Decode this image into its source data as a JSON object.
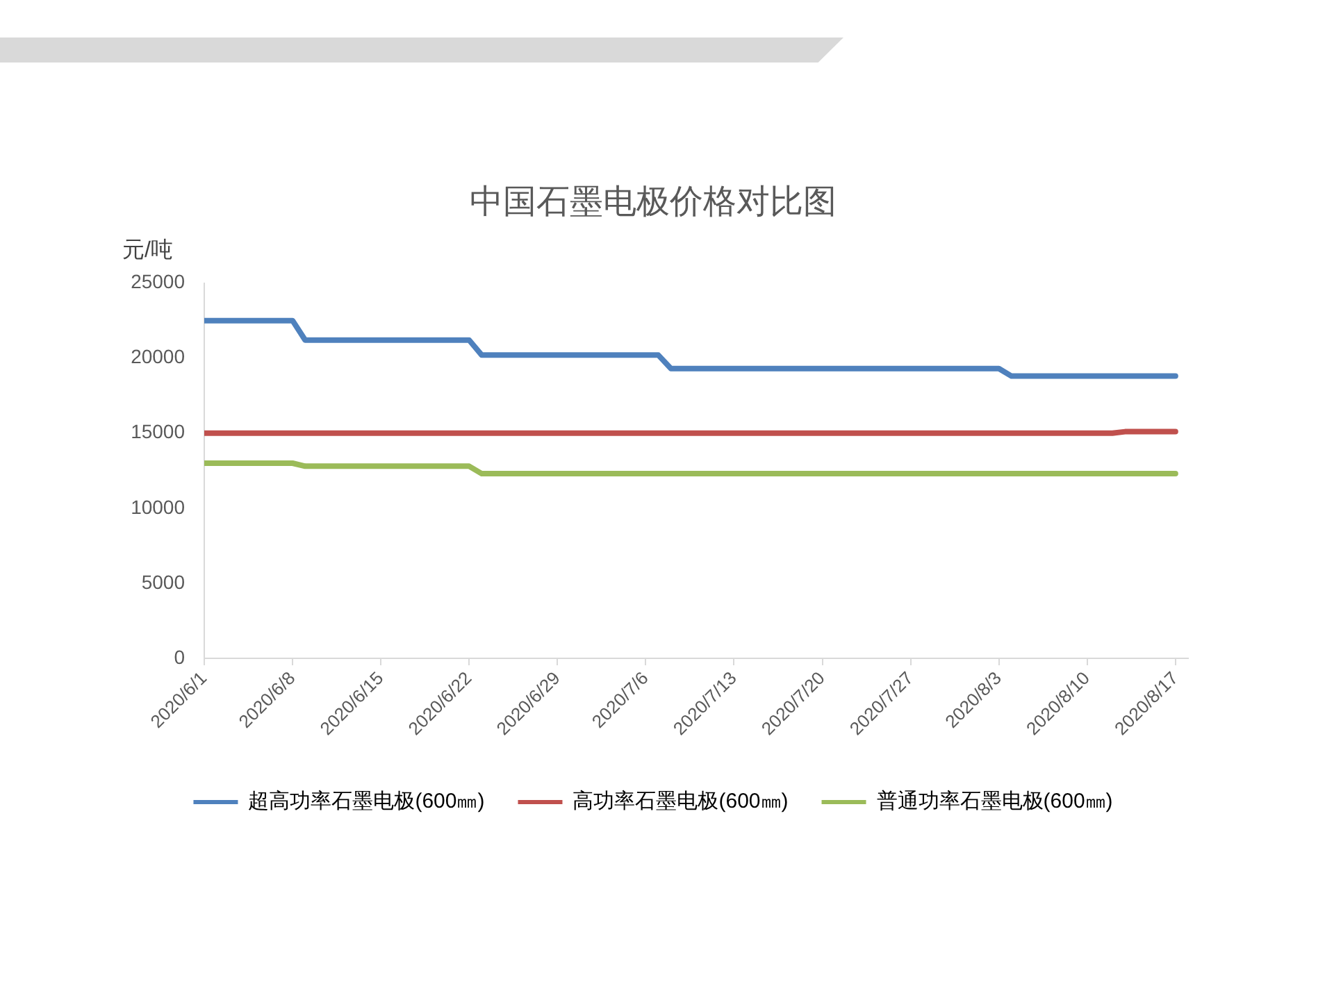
{
  "chart_data": {
    "type": "line",
    "title": "中国石墨电极价格对比图",
    "ylabel": "元/吨",
    "xlim": [
      "2020-06-01",
      "2020-08-18"
    ],
    "xticks": [
      {
        "value": "2020-06-01",
        "label": "2020/6/1"
      },
      {
        "value": "2020-06-08",
        "label": "2020/6/8"
      },
      {
        "value": "2020-06-15",
        "label": "2020/6/15"
      },
      {
        "value": "2020-06-22",
        "label": "2020/6/22"
      },
      {
        "value": "2020-06-29",
        "label": "2020/6/29"
      },
      {
        "value": "2020-07-06",
        "label": "2020/7/6"
      },
      {
        "value": "2020-07-13",
        "label": "2020/7/13"
      },
      {
        "value": "2020-07-20",
        "label": "2020/7/20"
      },
      {
        "value": "2020-07-27",
        "label": "2020/7/27"
      },
      {
        "value": "2020-08-03",
        "label": "2020/8/3"
      },
      {
        "value": "2020-08-10",
        "label": "2020/8/10"
      },
      {
        "value": "2020-08-17",
        "label": "2020/8/17"
      }
    ],
    "ylim": [
      0,
      25000
    ],
    "yticks": [
      0,
      5000,
      10000,
      15000,
      20000,
      25000
    ],
    "series": [
      {
        "name": "超高功率石墨电极(600㎜)",
        "color": "#4f81bd",
        "x": [
          "2020-06-01",
          "2020-06-08",
          "2020-06-09",
          "2020-06-22",
          "2020-06-23",
          "2020-07-07",
          "2020-07-08",
          "2020-08-03",
          "2020-08-04",
          "2020-08-17"
        ],
        "values": [
          22500,
          22500,
          21200,
          21200,
          20200,
          20200,
          19300,
          19300,
          18800,
          18800
        ]
      },
      {
        "name": "高功率石墨电极(600㎜)",
        "color": "#c0504d",
        "x": [
          "2020-06-01",
          "2020-08-12",
          "2020-08-13",
          "2020-08-17"
        ],
        "values": [
          15000,
          15000,
          15100,
          15100
        ]
      },
      {
        "name": "普通功率石墨电极(600㎜)",
        "color": "#9bbb59",
        "x": [
          "2020-06-01",
          "2020-06-08",
          "2020-06-09",
          "2020-06-22",
          "2020-06-23",
          "2020-08-17"
        ],
        "values": [
          13000,
          13000,
          12800,
          12800,
          12300,
          12300
        ]
      }
    ],
    "legend": "bottom",
    "marker": "none",
    "line_style": "solid",
    "grid": false
  }
}
